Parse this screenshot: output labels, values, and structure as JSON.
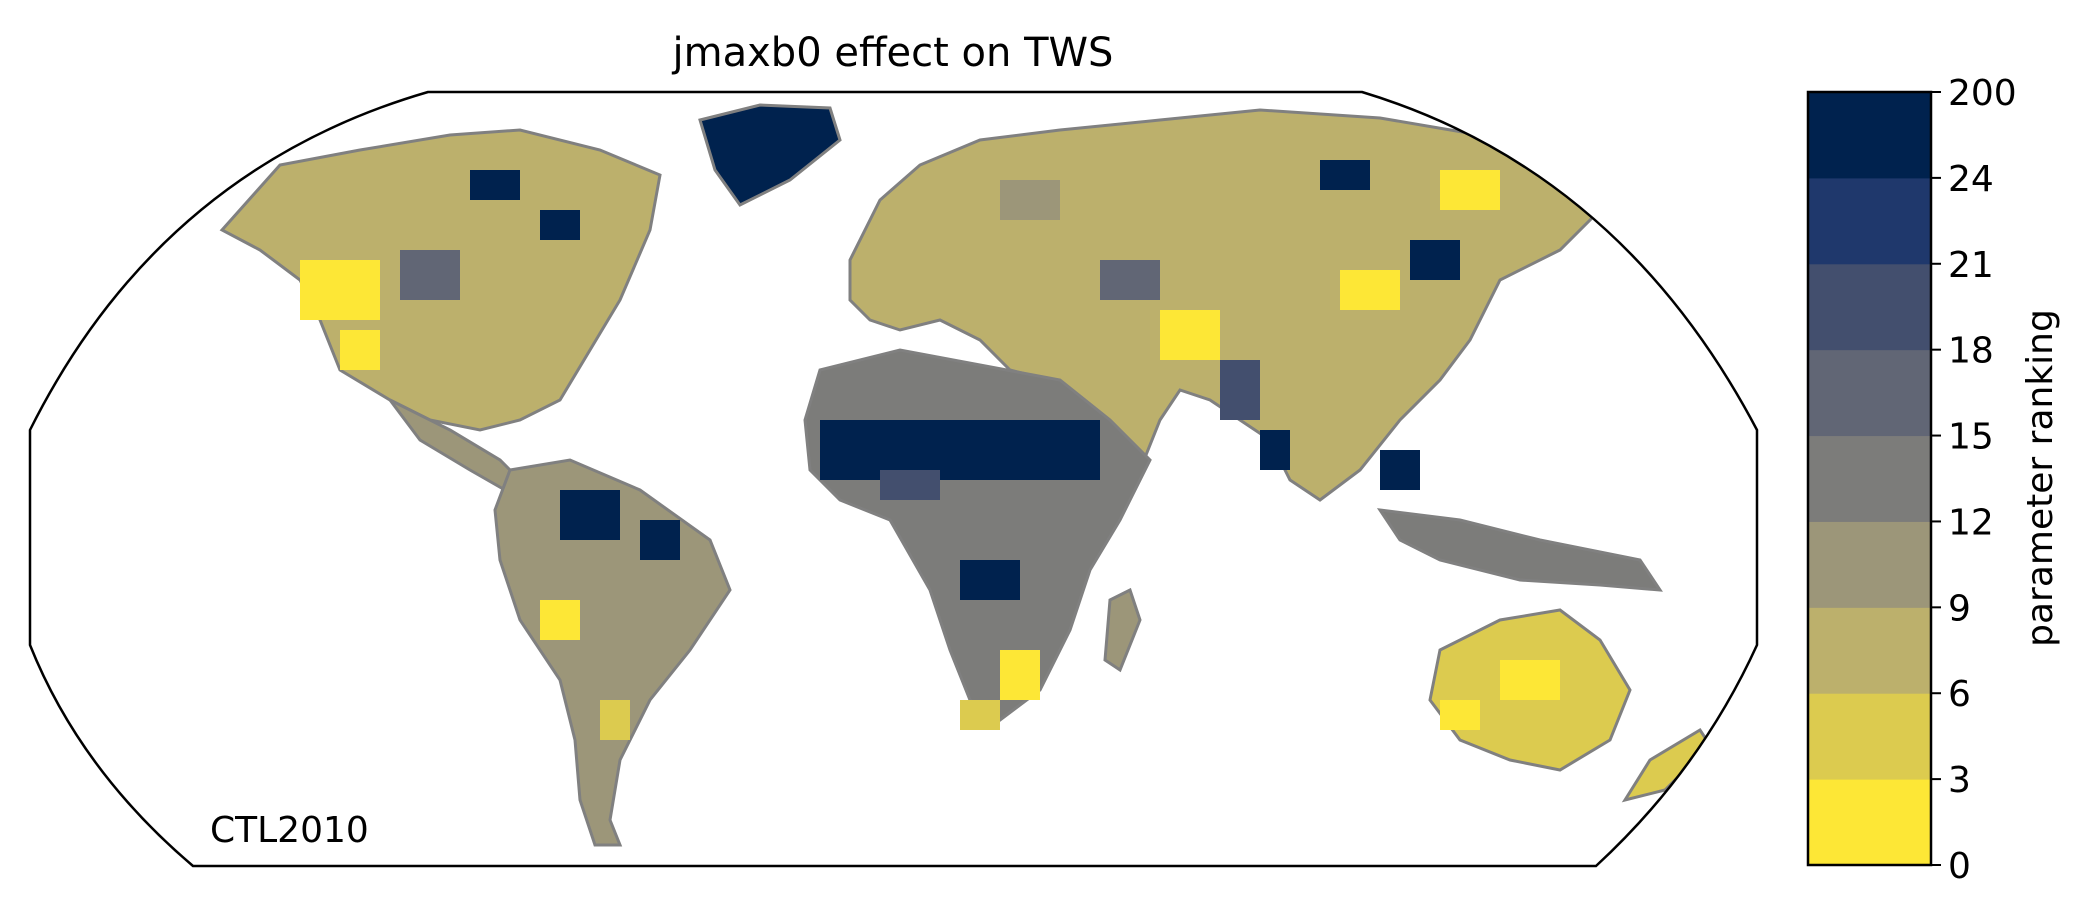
{
  "figure": {
    "title": "jmaxb0 effect on TWS",
    "run_label": "CTL2010",
    "projection": "Robinson",
    "coastline_color": "#808080"
  },
  "colorbar": {
    "label": "parameter ranking",
    "ticks": [
      "0",
      "3",
      "6",
      "9",
      "12",
      "15",
      "18",
      "21",
      "24",
      "200"
    ],
    "colors": [
      "#fde736",
      "#dccb4f",
      "#bcb06c",
      "#9c9679",
      "#7c7c7a",
      "#616675",
      "#434f6e",
      "#1f386c",
      "#00224e"
    ]
  }
}
